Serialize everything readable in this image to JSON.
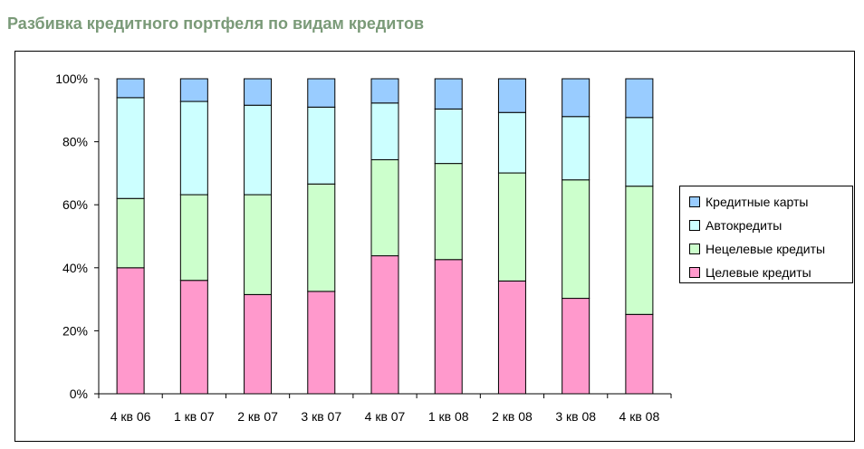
{
  "page": {
    "title": "Разбивка кредитного портфеля по видам кредитов"
  },
  "chart_data": {
    "type": "bar",
    "stacked": "percent",
    "title": "",
    "xlabel": "",
    "ylabel": "",
    "ylim": [
      0,
      100
    ],
    "y_ticks": [
      "0%",
      "20%",
      "40%",
      "60%",
      "80%",
      "100%"
    ],
    "categories": [
      "4 кв 06",
      "1 кв 07",
      "2 кв 07",
      "3 кв 07",
      "4 кв 07",
      "1 кв 08",
      "2 кв 08",
      "3 кв 08",
      "4 кв 08"
    ],
    "series": [
      {
        "name": "Целевые кредиты",
        "color": "#ff99cc",
        "values": [
          40,
          36,
          31.5,
          32.5,
          43.8,
          42.6,
          35.8,
          30.3,
          25.2
        ]
      },
      {
        "name": "Нецелевые кредиты",
        "color": "#ccffcc",
        "values": [
          22,
          27.2,
          31.7,
          34.1,
          30.5,
          30.5,
          34.3,
          37.6,
          40.7
        ]
      },
      {
        "name": "Автокредиты",
        "color": "#ccffff",
        "values": [
          32,
          29.6,
          28.4,
          24.4,
          18,
          17.3,
          19.2,
          20.1,
          21.8
        ]
      },
      {
        "name": "Кредитные карты",
        "color": "#99ccff",
        "values": [
          6,
          7.2,
          8.4,
          9,
          7.7,
          9.6,
          10.7,
          12,
          12.3
        ]
      }
    ],
    "legend_order": [
      3,
      2,
      1,
      0
    ],
    "legend_position": "right",
    "grid": false
  }
}
